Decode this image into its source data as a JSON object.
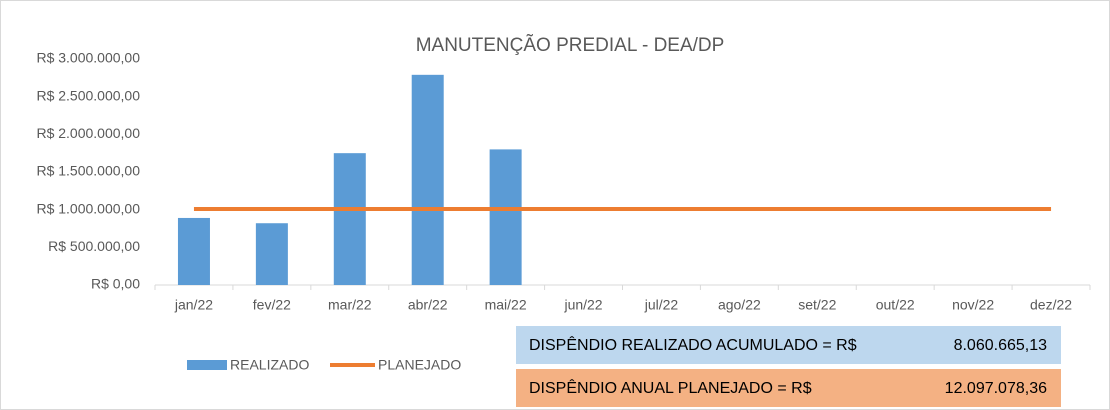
{
  "chart_data": {
    "type": "bar",
    "title": "MANUTENÇÃO PREDIAL - DEA/DP",
    "categories": [
      "jan/22",
      "fev/22",
      "mar/22",
      "abr/22",
      "mai/22",
      "jun/22",
      "jul/22",
      "ago/22",
      "set/22",
      "out/22",
      "nov/22",
      "dez/22"
    ],
    "series": [
      {
        "name": "REALIZADO",
        "type": "bar",
        "color": "#5b9bd5",
        "values": [
          890000,
          820000,
          1750000,
          2790000,
          1800000,
          null,
          null,
          null,
          null,
          null,
          null,
          null
        ]
      },
      {
        "name": "PLANEJADO",
        "type": "line",
        "color": "#ed7d31",
        "values": [
          1008090,
          1008090,
          1008090,
          1008090,
          1008090,
          1008090,
          1008090,
          1008090,
          1008090,
          1008090,
          1008090,
          1008090
        ]
      }
    ],
    "ylim": [
      0,
      3000000
    ],
    "yticks": [
      {
        "value": 0,
        "label": "R$ 0,00"
      },
      {
        "value": 500000,
        "label": "R$ 500.000,00"
      },
      {
        "value": 1000000,
        "label": "R$ 1.000.000,00"
      },
      {
        "value": 1500000,
        "label": "R$ 1.500.000,00"
      },
      {
        "value": 2000000,
        "label": "R$ 2.000.000,00"
      },
      {
        "value": 2500000,
        "label": "R$ 2.500.000,00"
      },
      {
        "value": 3000000,
        "label": "R$ 3.000.000,00"
      }
    ],
    "grid": false,
    "legend": "bottom",
    "annotations": [
      {
        "label": "DISPÊNDIO REALIZADO ACUMULADO = R$",
        "amount": "8.060.665,13",
        "color": "#bdd7ee"
      },
      {
        "label": "DISPÊNDIO ANUAL PLANEJADO = R$",
        "amount": "12.097.078,36",
        "color": "#f4b183"
      }
    ]
  }
}
